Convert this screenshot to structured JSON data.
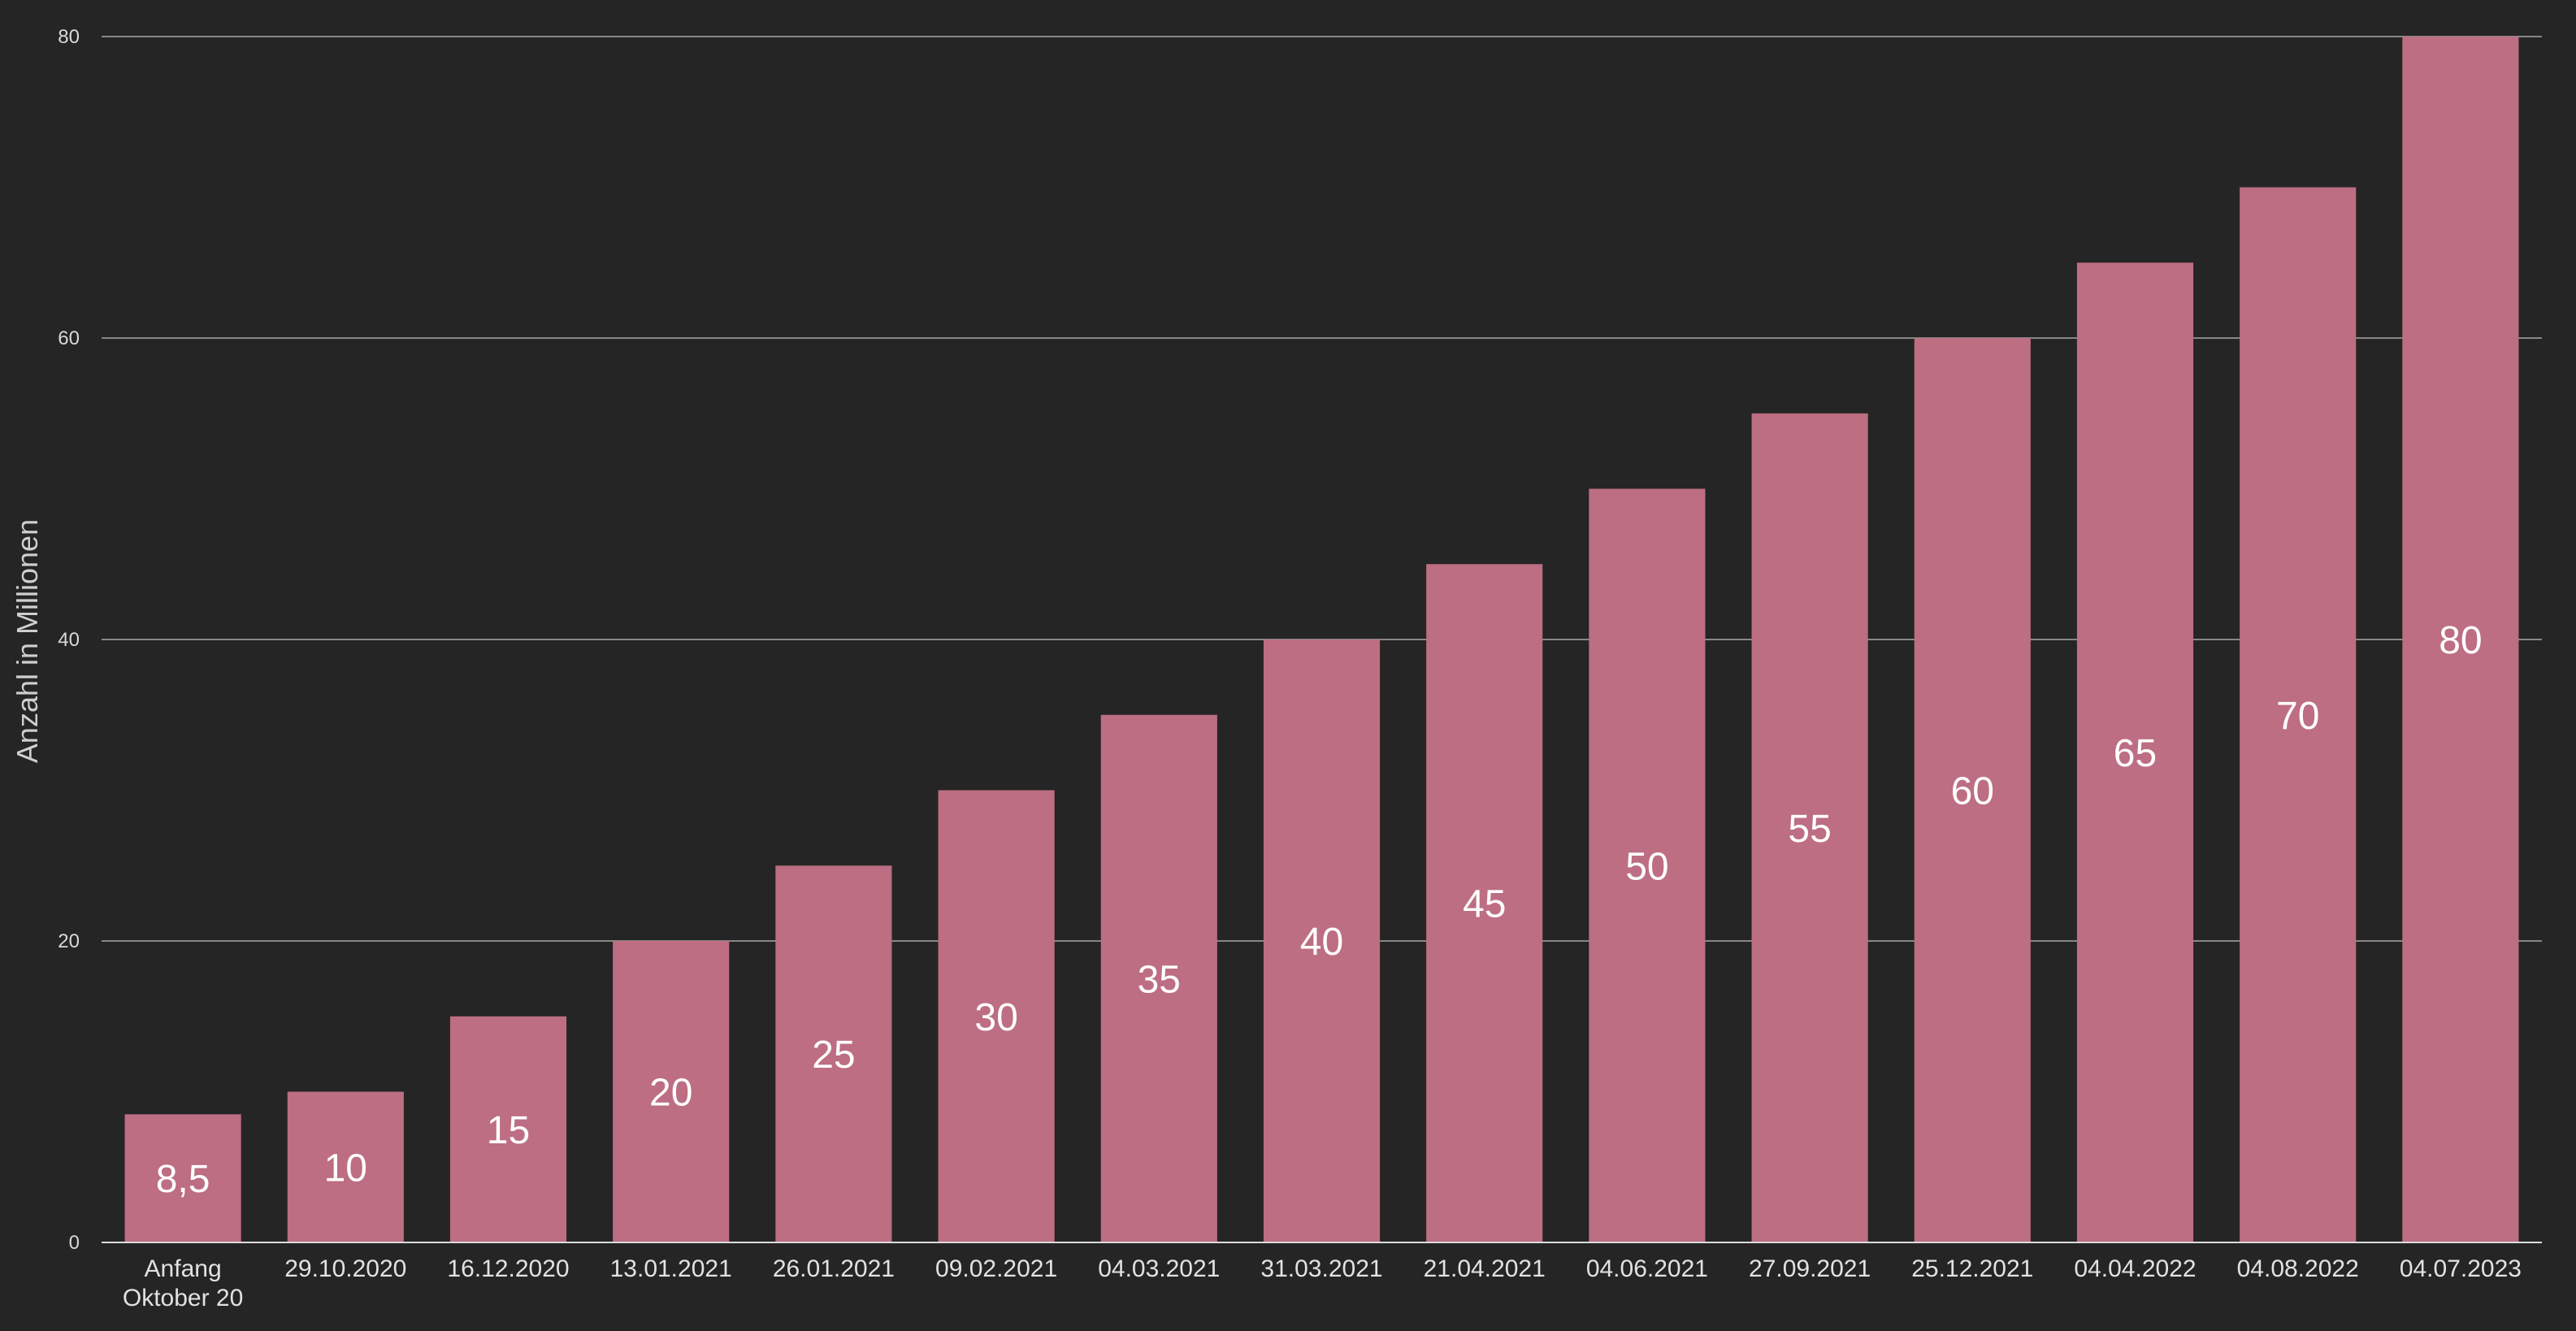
{
  "chart_data": {
    "type": "bar",
    "categories": [
      "Anfang Oktober 20",
      "29.10.2020",
      "16.12.2020",
      "13.01.2021",
      "26.01.2021",
      "09.02.2021",
      "04.03.2021",
      "31.03.2021",
      "21.04.2021",
      "04.06.2021",
      "27.09.2021",
      "25.12.2021",
      "04.04.2022",
      "04.08.2022",
      "04.07.2023"
    ],
    "values": [
      8.5,
      10,
      15,
      20,
      25,
      30,
      35,
      40,
      45,
      50,
      55,
      60,
      65,
      70,
      80
    ],
    "value_labels": [
      "8,5",
      "10",
      "15",
      "20",
      "25",
      "30",
      "35",
      "40",
      "45",
      "50",
      "55",
      "60",
      "65",
      "70",
      "80"
    ],
    "ylabel": "Anzahl in Millionen",
    "ylim": [
      0,
      80
    ],
    "yticks": [
      0,
      20,
      40,
      60,
      80
    ],
    "grid": true,
    "legend": "none",
    "colors": {
      "background": "#252525",
      "bar": "#bd6e82",
      "grid": "#a8a8a8",
      "axis": "#dcdcdc",
      "value_text": "#ffffff",
      "tick_text": "#e2e2e2"
    }
  }
}
